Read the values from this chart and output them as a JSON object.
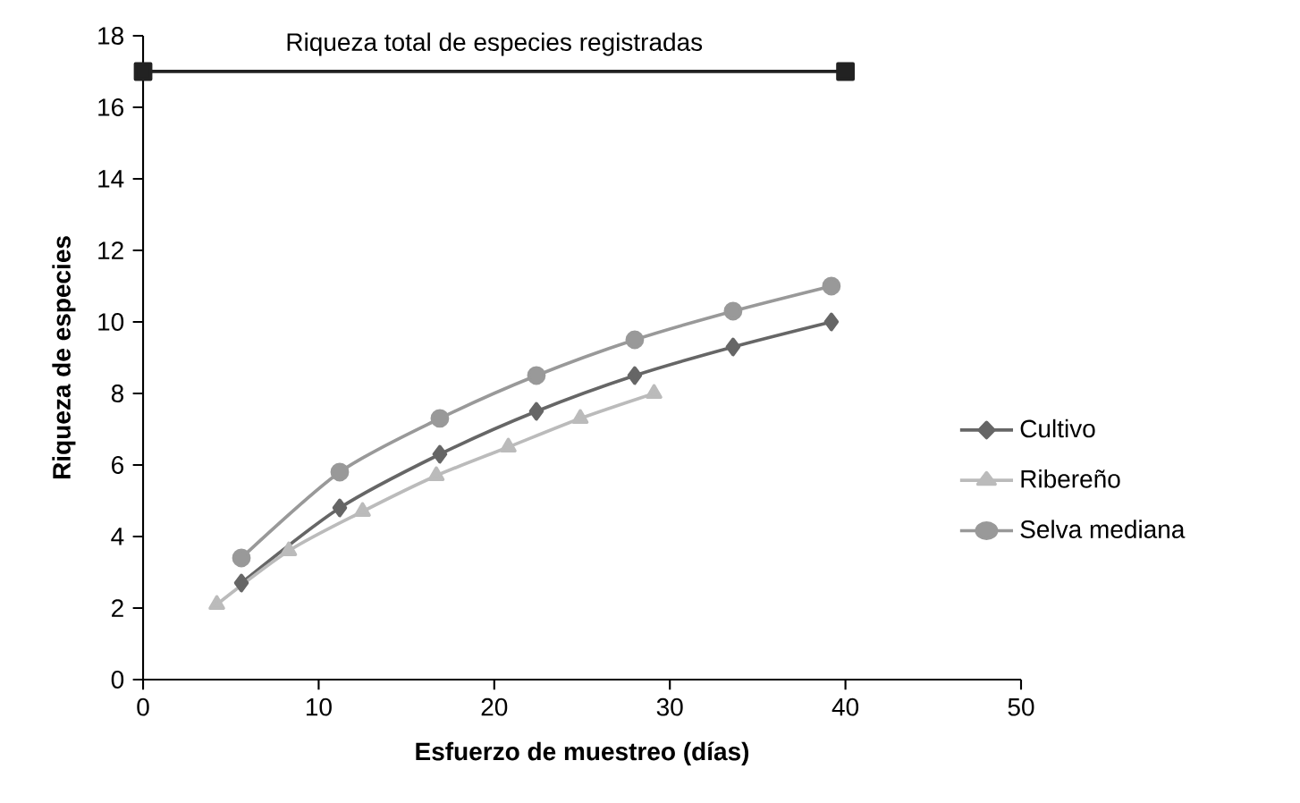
{
  "chart_data": {
    "type": "line",
    "xlabel": "Esfuerzo de muestreo (días)",
    "ylabel": "Riqueza de especies",
    "xlim": [
      0,
      50
    ],
    "xticks": [
      0,
      10,
      20,
      30,
      40,
      50
    ],
    "ylim": [
      0,
      18
    ],
    "yticks": [
      0,
      2,
      4,
      6,
      8,
      10,
      12,
      14,
      16,
      18
    ],
    "legend": "right",
    "grid": false,
    "series": [
      {
        "name": "Cultivo",
        "color": "#666666",
        "marker": "diamond",
        "x": [
          5.6,
          11.2,
          16.9,
          22.4,
          28.0,
          33.6,
          39.2
        ],
        "values": [
          2.7,
          4.8,
          6.3,
          7.5,
          8.5,
          9.3,
          10.0
        ]
      },
      {
        "name": "Ribereño",
        "color": "#bbbbbb",
        "marker": "triangle",
        "x": [
          4.2,
          8.3,
          12.5,
          16.7,
          20.8,
          24.9,
          29.1
        ],
        "values": [
          2.1,
          3.6,
          4.7,
          5.7,
          6.5,
          7.3,
          8.0
        ]
      },
      {
        "name": "Selva mediana",
        "color": "#999999",
        "marker": "circle",
        "x": [
          5.6,
          11.2,
          16.9,
          22.4,
          28.0,
          33.6,
          39.2
        ],
        "values": [
          3.4,
          5.8,
          7.3,
          8.5,
          9.5,
          10.3,
          11.0
        ]
      },
      {
        "name": "Riqueza total de especies registradas",
        "color": "#222222",
        "marker": "square",
        "x": [
          0,
          40
        ],
        "values": [
          17,
          17
        ]
      }
    ]
  }
}
